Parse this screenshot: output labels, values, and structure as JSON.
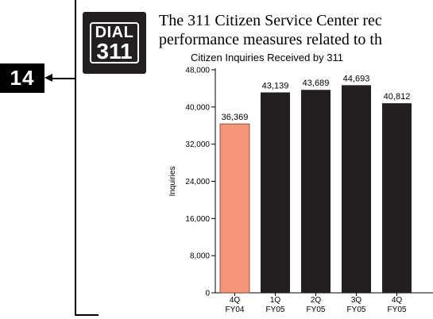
{
  "page_number": "14",
  "logo": {
    "line1": "DIAL",
    "line2": "311"
  },
  "intro": {
    "line1": "The 311 Citizen Service Center rec",
    "line2": "performance measures related to th"
  },
  "colors": {
    "highlight_bar": "#f4967a",
    "bar": "#231f20",
    "ink": "#000000"
  },
  "chart_data": {
    "type": "bar",
    "title": "Citizen Inquiries Received by 311",
    "ylabel": "Inquiries",
    "xlabel": "",
    "categories": [
      [
        "4Q",
        "FY04"
      ],
      [
        "1Q",
        "FY05"
      ],
      [
        "2Q",
        "FY05"
      ],
      [
        "3Q",
        "FY05"
      ],
      [
        "4Q",
        "FY05"
      ]
    ],
    "values": [
      36369,
      43139,
      43689,
      44693,
      40812
    ],
    "value_labels": [
      "36,369",
      "43,139",
      "43,689",
      "44,693",
      "40,812"
    ],
    "highlight_index": 0,
    "ylim": [
      0,
      48000
    ],
    "yticks": [
      0,
      8000,
      16000,
      24000,
      32000,
      40000,
      48000
    ],
    "ytick_labels": [
      "0",
      "8,000",
      "16,000",
      "24,000",
      "32,000",
      "40,000",
      "48,000"
    ],
    "grid": false,
    "legend": "none"
  }
}
